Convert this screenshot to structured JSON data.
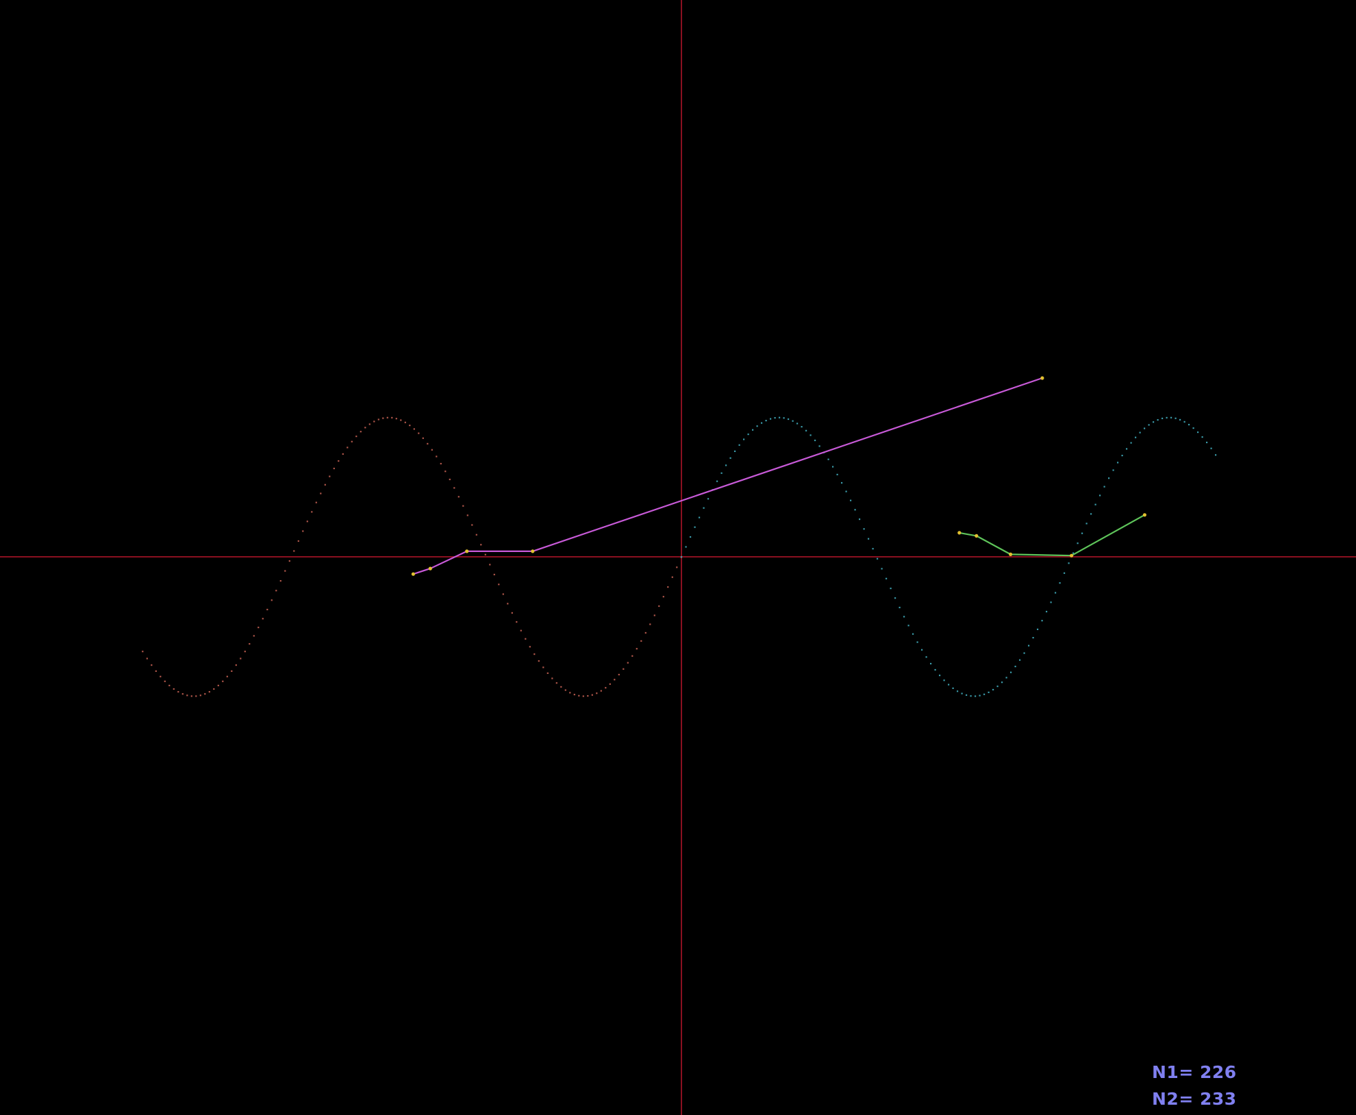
{
  "colors": {
    "background": "#000000",
    "axes": "#8a1020",
    "wave_left": "#b0564a",
    "wave_right": "#3a9aa8",
    "purple_line": "#c85ad8",
    "green_line": "#5ec45a",
    "vertex_marker": "#e0c030",
    "counter_text": "#8080f0"
  },
  "counters": {
    "n1": "N1= 226",
    "n2": "N2= 233"
  },
  "chart_data": {
    "type": "line",
    "title": "",
    "xlabel": "",
    "ylabel": "",
    "xlim": [
      -11,
      11
    ],
    "ylim": [
      -9,
      9
    ],
    "grid": false,
    "axes": "crosshair",
    "series": [
      {
        "kind": "dotted-sine",
        "color_key": "wave_left",
        "amplitude": 2.26,
        "period": 8.0,
        "phase_zero_x": -8.0,
        "x_range": [
          -11.05,
          0.0
        ]
      },
      {
        "kind": "dotted-sine",
        "color_key": "wave_right",
        "amplitude": 2.26,
        "period": 8.0,
        "phase_zero_x": 0.0,
        "x_range": [
          0.0,
          11.0
        ]
      },
      {
        "kind": "polyline",
        "color_key": "purple_line",
        "points": [
          [
            -5.5,
            -0.28
          ],
          [
            -5.15,
            -0.19
          ],
          [
            -4.4,
            0.09
          ],
          [
            -3.05,
            0.09
          ],
          [
            7.4,
            2.9
          ]
        ]
      },
      {
        "kind": "polyline",
        "color_key": "green_line",
        "points": [
          [
            5.7,
            0.39
          ],
          [
            6.05,
            0.34
          ],
          [
            6.75,
            0.04
          ],
          [
            8.0,
            0.02
          ],
          [
            9.5,
            0.68
          ]
        ]
      }
    ]
  }
}
